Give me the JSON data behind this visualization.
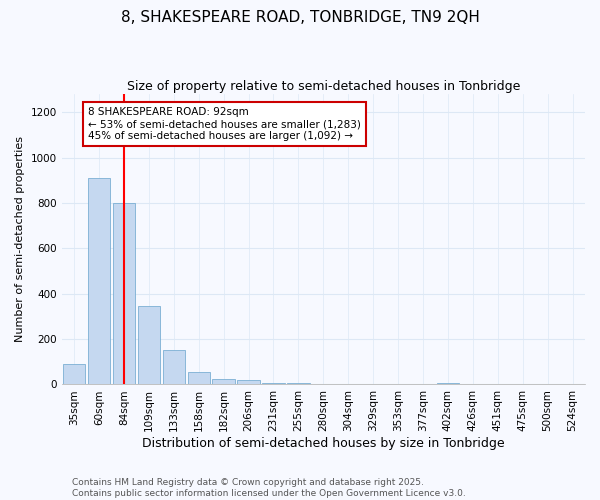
{
  "title": "8, SHAKESPEARE ROAD, TONBRIDGE, TN9 2QH",
  "subtitle": "Size of property relative to semi-detached houses in Tonbridge",
  "xlabel": "Distribution of semi-detached houses by size in Tonbridge",
  "ylabel": "Number of semi-detached properties",
  "categories": [
    "35sqm",
    "60sqm",
    "84sqm",
    "109sqm",
    "133sqm",
    "158sqm",
    "182sqm",
    "206sqm",
    "231sqm",
    "255sqm",
    "280sqm",
    "304sqm",
    "329sqm",
    "353sqm",
    "377sqm",
    "402sqm",
    "426sqm",
    "451sqm",
    "475sqm",
    "500sqm",
    "524sqm"
  ],
  "values": [
    90,
    910,
    800,
    345,
    150,
    55,
    25,
    20,
    5,
    5,
    0,
    0,
    0,
    0,
    0,
    5,
    0,
    0,
    0,
    0,
    0
  ],
  "bar_color": "#c5d8f0",
  "bar_edgecolor": "#7bafd4",
  "red_line_index": 2,
  "annotation_text": "8 SHAKESPEARE ROAD: 92sqm\n← 53% of semi-detached houses are smaller (1,283)\n45% of semi-detached houses are larger (1,092) →",
  "annotation_box_color": "#ffffff",
  "annotation_box_edgecolor": "#cc0000",
  "ylim": [
    0,
    1280
  ],
  "yticks": [
    0,
    200,
    400,
    600,
    800,
    1000,
    1200
  ],
  "footnote": "Contains HM Land Registry data © Crown copyright and database right 2025.\nContains public sector information licensed under the Open Government Licence v3.0.",
  "title_fontsize": 11,
  "subtitle_fontsize": 9,
  "xlabel_fontsize": 9,
  "ylabel_fontsize": 8,
  "tick_fontsize": 7.5,
  "annotation_fontsize": 7.5,
  "footnote_fontsize": 6.5,
  "background_color": "#f7f9ff",
  "grid_color": "#dde8f5"
}
